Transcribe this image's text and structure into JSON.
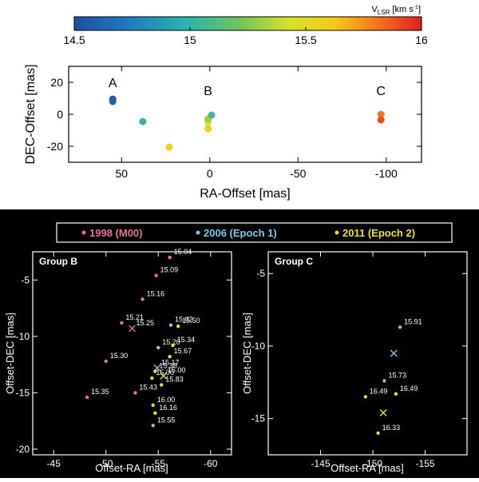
{
  "colorbar": {
    "label_main": "V",
    "label_sub": "LSR",
    "label_unit": " [km s",
    "label_exp": "-1",
    "label_close": "]",
    "ticks": [
      "14.5",
      "15",
      "15.5",
      "16"
    ],
    "range": [
      14.5,
      16
    ]
  },
  "top_panel": {
    "xlabel": "RA-Offset [mas]",
    "ylabel": "DEC-Offset [mas]",
    "group_labels": [
      {
        "text": "A",
        "x": 55,
        "y": 17
      },
      {
        "text": "B",
        "x": 1,
        "y": 12
      },
      {
        "text": "C",
        "x": -97,
        "y": 12
      }
    ]
  },
  "legend": {
    "items": [
      {
        "label": "1998 (M00)",
        "color": "#e8709a"
      },
      {
        "label": "2006 (Epoch 1)",
        "color": "#7ec8ec"
      },
      {
        "label": "2011 (Epoch 2)",
        "color": "#f0e020"
      }
    ]
  },
  "panel_b": {
    "title": "Group B",
    "xlabel": "Offset-RA [mas]",
    "ylabel": "Offset-DEC [mas]"
  },
  "panel_c": {
    "title": "Group C",
    "xlabel": "Offset-RA [mas]",
    "ylabel": "Offset-DEC [mas]"
  },
  "chart_data": [
    {
      "type": "scatter",
      "title": "",
      "xlabel": "RA-Offset [mas]",
      "ylabel": "DEC-Offset [mas]",
      "xlim": [
        80,
        -120
      ],
      "ylim": [
        -30,
        30
      ],
      "xticks": [
        50,
        0,
        -50,
        -100
      ],
      "yticks": [
        -20,
        0,
        20
      ],
      "color_scale": {
        "label": "VLSR [km s-1]",
        "range": [
          14.5,
          16
        ]
      },
      "points": [
        {
          "x": 55,
          "y": 9.5,
          "v": 14.55
        },
        {
          "x": 55,
          "y": 8.0,
          "v": 14.6
        },
        {
          "x": 38,
          "y": -4.5,
          "v": 15.0
        },
        {
          "x": 23,
          "y": -20.5,
          "v": 15.55
        },
        {
          "x": 1,
          "y": -9,
          "v": 15.55
        },
        {
          "x": 1,
          "y": -5,
          "v": 15.45
        },
        {
          "x": 1,
          "y": -3,
          "v": 15.3
        },
        {
          "x": -1,
          "y": -0.5,
          "v": 15.05
        },
        {
          "x": -97,
          "y": 0,
          "v": 15.8
        },
        {
          "x": -97,
          "y": -3.5,
          "v": 15.9
        }
      ]
    },
    {
      "type": "scatter",
      "title": "Group B",
      "xlabel": "Offset-RA [mas]",
      "ylabel": "Offset-DEC [mas]",
      "xlim": [
        -43,
        -62
      ],
      "ylim": [
        -20.5,
        -2.5
      ],
      "xticks": [
        -45,
        -50,
        -55,
        -60
      ],
      "yticks": [
        -5,
        -10,
        -15,
        -20
      ],
      "series": [
        {
          "name": "1998 (M00)",
          "color": "#e8709a",
          "points": [
            {
              "x": -56.1,
              "y": -3.0,
              "label": "15.04"
            },
            {
              "x": -54.8,
              "y": -4.6,
              "label": "15.09"
            },
            {
              "x": -53.5,
              "y": -6.7,
              "label": "15.16"
            },
            {
              "x": -51.5,
              "y": -8.8,
              "label": "15.21"
            },
            {
              "x": -52.5,
              "y": -9.3,
              "label": "15.25",
              "marker": "x"
            },
            {
              "x": -50.0,
              "y": -12.2,
              "label": "15.30"
            },
            {
              "x": -48.2,
              "y": -15.4,
              "label": "15.35"
            },
            {
              "x": -52.8,
              "y": -15.0,
              "label": "15.43"
            }
          ]
        },
        {
          "name": "2006 (Epoch 1)",
          "color": "#7ec8ec",
          "points": [
            {
              "x": -56.2,
              "y": -9.0,
              "label": "15.02"
            },
            {
              "x": -55.0,
              "y": -11.0,
              "label": "15.20"
            },
            {
              "x": -54.9,
              "y": -12.8,
              "label": "15.17",
              "marker": "x"
            },
            {
              "x": -54.5,
              "y": -17.9,
              "label": "15.55"
            }
          ]
        },
        {
          "name": "2011 (Epoch 2)",
          "color": "#f0e020",
          "points": [
            {
              "x": -56.9,
              "y": -9.1,
              "label": "15.50"
            },
            {
              "x": -56.4,
              "y": -10.8,
              "label": "15.34"
            },
            {
              "x": -56.1,
              "y": -11.8,
              "label": "15.67"
            },
            {
              "x": -54.7,
              "y": -13.1,
              "label": "15.38"
            },
            {
              "x": -55.5,
              "y": -13.5,
              "label": "15.00",
              "marker": "x"
            },
            {
              "x": -54.4,
              "y": -13.7,
              "label": "15.00"
            },
            {
              "x": -55.3,
              "y": -14.3,
              "label": "15.83"
            },
            {
              "x": -54.5,
              "y": -16.1,
              "label": "16.00"
            },
            {
              "x": -54.7,
              "y": -16.8,
              "label": "16.16"
            }
          ]
        }
      ]
    },
    {
      "type": "scatter",
      "title": "Group C",
      "xlabel": "Offset-RA [mas]",
      "ylabel": "Offset-DEC [mas]",
      "xlim": [
        -140,
        -159
      ],
      "ylim": [
        -17.5,
        -3.5
      ],
      "xticks": [
        -145,
        -150,
        -155
      ],
      "yticks": [
        -5,
        -10,
        -15
      ],
      "series": [
        {
          "name": "1998 (M00)",
          "color": "#e8709a",
          "points": []
        },
        {
          "name": "2006 (Epoch 1)",
          "color": "#7ec8ec",
          "points": [
            {
              "x": -152.6,
              "y": -8.7,
              "label": "15.91"
            },
            {
              "x": -152.0,
              "y": -10.5,
              "label": "",
              "marker": "x"
            },
            {
              "x": -151.1,
              "y": -12.4,
              "label": "15.73"
            }
          ]
        },
        {
          "name": "2011 (Epoch 2)",
          "color": "#f0e020",
          "points": [
            {
              "x": -149.3,
              "y": -13.5,
              "label": "16.49"
            },
            {
              "x": -152.2,
              "y": -13.3,
              "label": "16.49"
            },
            {
              "x": -151.0,
              "y": -14.6,
              "label": "",
              "marker": "x"
            },
            {
              "x": -150.5,
              "y": -16.0,
              "label": "16.33"
            }
          ]
        }
      ]
    }
  ]
}
